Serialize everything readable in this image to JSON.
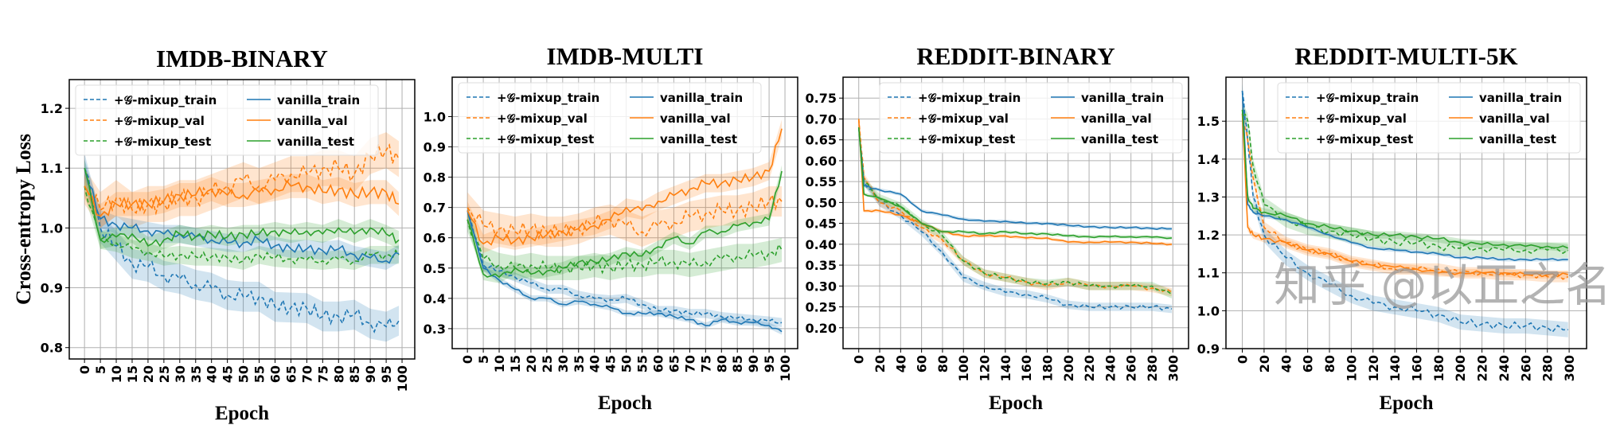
{
  "ylabel": "Cross-entropy  Loss",
  "watermark": "知乎 @以正之名",
  "legend_labels": [
    "+𝒢-mixup_train",
    "+𝒢-mixup_val",
    "+𝒢-mixup_test",
    "vanilla_train",
    "vanilla_val",
    "vanilla_test"
  ],
  "colors": {
    "train": "#1f77b4",
    "val": "#ff7f0e",
    "test": "#2ca02c"
  },
  "chart_data": [
    {
      "type": "line",
      "title": "IMDB-BINARY",
      "xlabel": "Epoch",
      "ylabel": "Cross-entropy  Loss",
      "xlim": [
        -4.8,
        104
      ],
      "ylim": [
        0.781,
        1.248
      ],
      "grid": true,
      "legend": "top-left",
      "xticks": [
        0,
        5,
        10,
        15,
        20,
        25,
        30,
        35,
        40,
        45,
        50,
        55,
        60,
        65,
        70,
        75,
        80,
        85,
        90,
        95,
        100
      ],
      "yticks": [
        "0.8",
        "0.9",
        "1.0",
        "1.1",
        "1.2"
      ],
      "x": [
        0,
        5,
        10,
        15,
        20,
        25,
        30,
        35,
        40,
        45,
        50,
        55,
        60,
        65,
        70,
        75,
        80,
        85,
        90,
        95,
        99
      ],
      "series": [
        {
          "name": "+𝒢-mixup_train",
          "color": "train",
          "dashed": true,
          "band": 0.025,
          "values": [
            1.1,
            1.0,
            0.97,
            0.94,
            0.935,
            0.92,
            0.915,
            0.905,
            0.9,
            0.888,
            0.885,
            0.885,
            0.868,
            0.867,
            0.866,
            0.852,
            0.852,
            0.855,
            0.84,
            0.835,
            0.845
          ]
        },
        {
          "name": "+𝒢-mixup_val",
          "color": "val",
          "dashed": true,
          "band": 0.03,
          "values": [
            1.07,
            1.03,
            1.05,
            1.03,
            1.04,
            1.04,
            1.05,
            1.05,
            1.06,
            1.07,
            1.08,
            1.07,
            1.08,
            1.09,
            1.09,
            1.1,
            1.1,
            1.09,
            1.12,
            1.13,
            1.115
          ]
        },
        {
          "name": "+𝒢-mixup_test",
          "color": "test",
          "dashed": true,
          "band": 0.015,
          "values": [
            1.07,
            0.98,
            0.975,
            0.965,
            0.96,
            0.952,
            0.955,
            0.952,
            0.952,
            0.95,
            0.945,
            0.955,
            0.95,
            0.948,
            0.947,
            0.945,
            0.948,
            0.945,
            0.955,
            0.955,
            0.955
          ]
        },
        {
          "name": "vanilla_train",
          "color": "train",
          "dashed": false,
          "band": 0.015,
          "values": [
            1.1,
            1.015,
            1.005,
            1.0,
            0.995,
            0.99,
            0.99,
            0.985,
            0.98,
            0.975,
            0.975,
            0.98,
            0.97,
            0.965,
            0.965,
            0.962,
            0.965,
            0.955,
            0.95,
            0.945,
            0.957
          ]
        },
        {
          "name": "vanilla_val",
          "color": "val",
          "dashed": false,
          "band": 0.02,
          "values": [
            1.07,
            1.02,
            1.04,
            1.04,
            1.04,
            1.045,
            1.055,
            1.055,
            1.065,
            1.055,
            1.055,
            1.06,
            1.065,
            1.07,
            1.07,
            1.06,
            1.065,
            1.055,
            1.06,
            1.06,
            1.04
          ]
        },
        {
          "name": "vanilla_test",
          "color": "test",
          "dashed": false,
          "band": 0.015,
          "values": [
            1.1,
            0.98,
            0.985,
            0.99,
            0.97,
            0.98,
            0.99,
            0.985,
            0.99,
            0.985,
            0.99,
            0.99,
            0.995,
            0.99,
            0.995,
            0.99,
            1.0,
            0.99,
            1.0,
            0.99,
            0.98
          ]
        }
      ]
    },
    {
      "type": "line",
      "title": "IMDB-MULTI",
      "xlabel": "Epoch",
      "xlim": [
        -4.8,
        104
      ],
      "ylim": [
        0.234,
        1.13
      ],
      "grid": true,
      "legend": "top-left",
      "xticks": [
        0,
        5,
        10,
        15,
        20,
        25,
        30,
        35,
        40,
        45,
        50,
        55,
        60,
        65,
        70,
        75,
        80,
        85,
        90,
        95,
        100
      ],
      "yticks": [
        "0.3",
        "0.4",
        "0.5",
        "0.6",
        "0.7",
        "0.8",
        "0.9",
        "1.0"
      ],
      "x": [
        0,
        5,
        10,
        15,
        20,
        25,
        30,
        35,
        40,
        45,
        50,
        55,
        60,
        65,
        70,
        75,
        80,
        85,
        90,
        95,
        99
      ],
      "series": [
        {
          "name": "+𝒢-mixup_train",
          "color": "train",
          "dashed": true,
          "band": 0.015,
          "values": [
            0.69,
            0.51,
            0.49,
            0.47,
            0.45,
            0.43,
            0.43,
            0.41,
            0.4,
            0.395,
            0.4,
            0.38,
            0.36,
            0.36,
            0.35,
            0.35,
            0.34,
            0.335,
            0.33,
            0.325,
            0.32
          ]
        },
        {
          "name": "+𝒢-mixup_val",
          "color": "val",
          "dashed": true,
          "band": 0.05,
          "values": [
            0.7,
            0.64,
            0.63,
            0.62,
            0.63,
            0.62,
            0.62,
            0.63,
            0.65,
            0.66,
            0.64,
            0.62,
            0.64,
            0.65,
            0.67,
            0.68,
            0.69,
            0.69,
            0.7,
            0.72,
            0.72
          ]
        },
        {
          "name": "+𝒢-mixup_test",
          "color": "test",
          "dashed": true,
          "band": 0.04,
          "values": [
            0.66,
            0.53,
            0.51,
            0.5,
            0.51,
            0.5,
            0.5,
            0.5,
            0.51,
            0.5,
            0.51,
            0.51,
            0.52,
            0.52,
            0.51,
            0.52,
            0.53,
            0.54,
            0.54,
            0.55,
            0.56
          ]
        },
        {
          "name": "vanilla_train",
          "color": "train",
          "dashed": false,
          "band": 0.01,
          "values": [
            0.69,
            0.5,
            0.46,
            0.43,
            0.4,
            0.4,
            0.38,
            0.39,
            0.38,
            0.37,
            0.35,
            0.35,
            0.35,
            0.34,
            0.33,
            0.31,
            0.33,
            0.32,
            0.32,
            0.31,
            0.29
          ]
        },
        {
          "name": "vanilla_val",
          "color": "val",
          "dashed": false,
          "band": 0.03,
          "values": [
            0.69,
            0.58,
            0.6,
            0.59,
            0.6,
            0.61,
            0.62,
            0.63,
            0.64,
            0.66,
            0.7,
            0.69,
            0.72,
            0.74,
            0.76,
            0.78,
            0.78,
            0.79,
            0.8,
            0.82,
            0.96
          ]
        },
        {
          "name": "vanilla_test",
          "color": "test",
          "dashed": false,
          "band": 0.02,
          "values": [
            0.66,
            0.48,
            0.47,
            0.5,
            0.48,
            0.49,
            0.5,
            0.52,
            0.52,
            0.53,
            0.55,
            0.54,
            0.57,
            0.6,
            0.58,
            0.62,
            0.62,
            0.64,
            0.65,
            0.66,
            0.82
          ]
        }
      ]
    },
    {
      "type": "line",
      "title": "REDDIT-BINARY",
      "xlabel": "Epoch",
      "xlim": [
        -15,
        315
      ],
      "ylim": [
        0.15,
        0.8
      ],
      "grid": true,
      "legend": "top-right",
      "xticks": [
        0,
        20,
        40,
        60,
        80,
        100,
        120,
        140,
        160,
        180,
        200,
        220,
        240,
        260,
        280,
        300
      ],
      "yticks": [
        "0.20",
        "0.25",
        "0.30",
        "0.35",
        "0.40",
        "0.45",
        "0.50",
        "0.55",
        "0.60",
        "0.65",
        "0.70",
        "0.75"
      ],
      "x": [
        0,
        5,
        20,
        40,
        60,
        80,
        100,
        120,
        140,
        160,
        180,
        200,
        220,
        240,
        260,
        280,
        299
      ],
      "series": [
        {
          "name": "+𝒢-mixup_train",
          "color": "train",
          "dashed": true,
          "band": 0.01,
          "values": [
            0.68,
            0.55,
            0.5,
            0.47,
            0.43,
            0.38,
            0.32,
            0.3,
            0.285,
            0.28,
            0.27,
            0.255,
            0.25,
            0.25,
            0.25,
            0.25,
            0.245
          ]
        },
        {
          "name": "+𝒢-mixup_val",
          "color": "val",
          "dashed": true,
          "band": 0.01,
          "values": [
            0.7,
            0.56,
            0.5,
            0.48,
            0.44,
            0.41,
            0.36,
            0.33,
            0.32,
            0.31,
            0.3,
            0.31,
            0.3,
            0.3,
            0.3,
            0.295,
            0.285
          ]
        },
        {
          "name": "+𝒢-mixup_test",
          "color": "test",
          "dashed": true,
          "band": 0.01,
          "values": [
            0.68,
            0.55,
            0.51,
            0.49,
            0.45,
            0.42,
            0.36,
            0.33,
            0.32,
            0.31,
            0.305,
            0.31,
            0.3,
            0.3,
            0.3,
            0.3,
            0.28
          ]
        },
        {
          "name": "vanilla_train",
          "color": "train",
          "dashed": false,
          "band": 0.004,
          "values": [
            0.68,
            0.54,
            0.53,
            0.52,
            0.48,
            0.47,
            0.46,
            0.455,
            0.455,
            0.45,
            0.45,
            0.445,
            0.442,
            0.44,
            0.44,
            0.438,
            0.437
          ]
        },
        {
          "name": "vanilla_val",
          "color": "val",
          "dashed": false,
          "band": 0.004,
          "values": [
            0.7,
            0.48,
            0.48,
            0.47,
            0.45,
            0.43,
            0.42,
            0.42,
            0.42,
            0.415,
            0.415,
            0.405,
            0.405,
            0.405,
            0.405,
            0.402,
            0.4
          ]
        },
        {
          "name": "vanilla_test",
          "color": "test",
          "dashed": false,
          "band": 0.004,
          "values": [
            0.68,
            0.52,
            0.51,
            0.49,
            0.45,
            0.43,
            0.43,
            0.425,
            0.43,
            0.425,
            0.425,
            0.42,
            0.418,
            0.418,
            0.418,
            0.417,
            0.415
          ]
        }
      ]
    },
    {
      "type": "line",
      "title": "REDDIT-MULTI-5K",
      "xlabel": "Epoch",
      "xlim": [
        -15,
        316
      ],
      "ylim": [
        0.9,
        1.616
      ],
      "grid": true,
      "legend": "top-right",
      "xticks": [
        0,
        20,
        40,
        60,
        80,
        100,
        120,
        140,
        160,
        180,
        200,
        220,
        240,
        260,
        280,
        300
      ],
      "yticks": [
        "0.9",
        "1.0",
        "1.1",
        "1.2",
        "1.3",
        "1.4",
        "1.5"
      ],
      "x": [
        0,
        5,
        10,
        20,
        40,
        60,
        80,
        100,
        120,
        140,
        160,
        180,
        200,
        220,
        240,
        260,
        280,
        299
      ],
      "series": [
        {
          "name": "+𝒢-mixup_train",
          "color": "train",
          "dashed": true,
          "band": 0.02,
          "values": [
            1.58,
            1.45,
            1.3,
            1.2,
            1.14,
            1.1,
            1.07,
            1.04,
            1.02,
            1.01,
            1.0,
            0.99,
            0.97,
            0.965,
            0.96,
            0.96,
            0.955,
            0.95
          ]
        },
        {
          "name": "+𝒢-mixup_val",
          "color": "val",
          "dashed": true,
          "band": 0.015,
          "values": [
            1.52,
            1.45,
            1.35,
            1.22,
            1.18,
            1.16,
            1.15,
            1.13,
            1.12,
            1.11,
            1.11,
            1.11,
            1.1,
            1.1,
            1.095,
            1.095,
            1.09,
            1.09
          ]
        },
        {
          "name": "+𝒢-mixup_test",
          "color": "test",
          "dashed": true,
          "band": 0.02,
          "values": [
            1.53,
            1.5,
            1.38,
            1.28,
            1.24,
            1.22,
            1.21,
            1.2,
            1.19,
            1.18,
            1.18,
            1.17,
            1.165,
            1.165,
            1.16,
            1.16,
            1.16,
            1.16
          ]
        },
        {
          "name": "vanilla_train",
          "color": "train",
          "dashed": false,
          "band": 0.005,
          "values": [
            1.58,
            1.28,
            1.26,
            1.25,
            1.24,
            1.22,
            1.2,
            1.18,
            1.165,
            1.16,
            1.155,
            1.15,
            1.14,
            1.14,
            1.135,
            1.135,
            1.135,
            1.135
          ]
        },
        {
          "name": "vanilla_val",
          "color": "val",
          "dashed": false,
          "band": 0.01,
          "values": [
            1.52,
            1.22,
            1.2,
            1.19,
            1.18,
            1.16,
            1.15,
            1.13,
            1.12,
            1.115,
            1.11,
            1.1,
            1.1,
            1.1,
            1.1,
            1.095,
            1.095,
            1.095
          ]
        },
        {
          "name": "vanilla_test",
          "color": "test",
          "dashed": false,
          "band": 0.01,
          "values": [
            1.53,
            1.3,
            1.27,
            1.26,
            1.25,
            1.23,
            1.22,
            1.21,
            1.2,
            1.2,
            1.195,
            1.19,
            1.18,
            1.175,
            1.175,
            1.17,
            1.17,
            1.165
          ]
        }
      ]
    }
  ]
}
